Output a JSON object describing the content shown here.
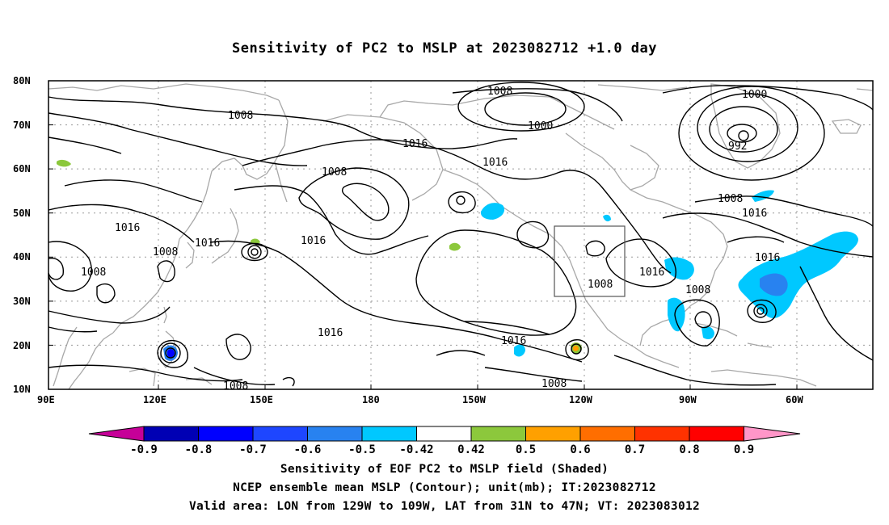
{
  "title": "Sensitivity of PC2 to MSLP at 2023082712 +1.0 day",
  "map": {
    "lat_labels": [
      "80N",
      "70N",
      "60N",
      "50N",
      "40N",
      "30N",
      "20N",
      "10N"
    ],
    "lon_labels": [
      "90E",
      "120E",
      "150E",
      "180",
      "150W",
      "120W",
      "90W",
      "60W"
    ],
    "contour_labels": [
      "1008",
      "1000",
      "1000",
      "992",
      "1008",
      "1016",
      "1016",
      "1008",
      "1016",
      "1008",
      "1016",
      "1016",
      "1008",
      "1016",
      "1008",
      "1016",
      "1008",
      "1016",
      "1016",
      "1008",
      "1008"
    ],
    "colors": {
      "contour": "#000000",
      "coastline": "#a8a8a8",
      "grid": "#999999",
      "valid_box": "#555555"
    },
    "valid_area": {
      "lon_range": [
        "129W",
        "109W"
      ],
      "lat_range": [
        "31N",
        "47N"
      ]
    }
  },
  "colorbar": {
    "tick_labels": [
      "-0.9",
      "-0.8",
      "-0.7",
      "-0.6",
      "-0.5",
      "-0.42",
      "0.42",
      "0.5",
      "0.6",
      "0.7",
      "0.8",
      "0.9"
    ],
    "colors": [
      "#c60098",
      "#0000b4",
      "#0000ff",
      "#1e46ff",
      "#2882f0",
      "#00c8ff",
      "#ffffff",
      "#8cc83c",
      "#ffa000",
      "#ff6e00",
      "#ff3200",
      "#ff0000",
      "#ff96c8"
    ]
  },
  "captions": [
    "Sensitivity of EOF PC2 to MSLP field (Shaded)",
    "NCEP ensemble mean MSLP (Contour); unit(mb); IT:2023082712",
    "Valid area: LON from 129W to 109W, LAT from 31N to 47N; VT: 2023083012"
  ]
}
